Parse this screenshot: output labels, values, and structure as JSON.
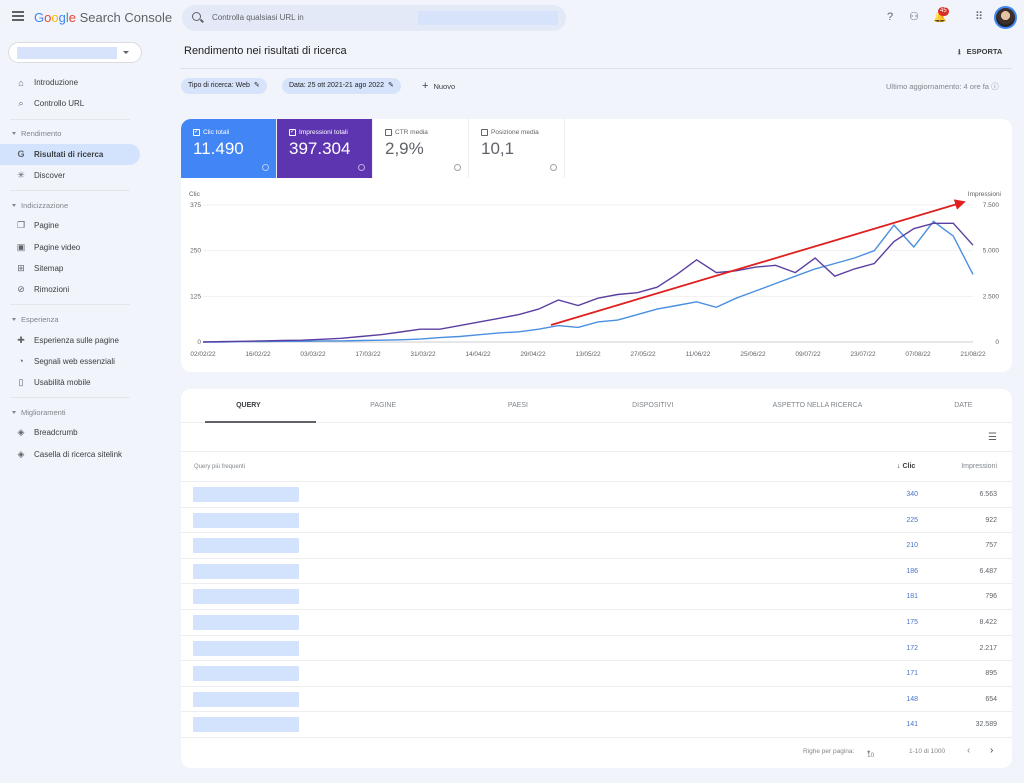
{
  "app": {
    "logo_parts": [
      "G",
      "o",
      "o",
      "g",
      "l",
      "e"
    ],
    "logo_rest": " Search Console"
  },
  "search": {
    "placeholder": "Controlla qualsiasi URL in"
  },
  "header": {
    "notification_count": "45"
  },
  "sidebar": {
    "items": [
      {
        "type": "item",
        "label": "Introduzione",
        "icon": "⌂",
        "name": "home-icon"
      },
      {
        "type": "item",
        "label": "Controllo URL",
        "icon": "⌕",
        "name": "search-icon"
      },
      {
        "type": "divider"
      },
      {
        "type": "section",
        "label": "Rendimento"
      },
      {
        "type": "item",
        "label": "Risultati di ricerca",
        "icon": "G",
        "name": "google-icon",
        "active": true
      },
      {
        "type": "item",
        "label": "Discover",
        "icon": "✳",
        "name": "discover-icon"
      },
      {
        "type": "divider"
      },
      {
        "type": "section",
        "label": "Indicizzazione"
      },
      {
        "type": "item",
        "label": "Pagine",
        "icon": "❐",
        "name": "pages-icon"
      },
      {
        "type": "item",
        "label": "Pagine video",
        "icon": "▣",
        "name": "video-pages-icon"
      },
      {
        "type": "item",
        "label": "Sitemap",
        "icon": "⊞",
        "name": "sitemap-icon"
      },
      {
        "type": "item",
        "label": "Rimozioni",
        "icon": "⊘",
        "name": "removals-icon"
      },
      {
        "type": "divider"
      },
      {
        "type": "section",
        "label": "Esperienza"
      },
      {
        "type": "item",
        "label": "Esperienza sulle pagine",
        "icon": "✚",
        "name": "page-experience-icon"
      },
      {
        "type": "item",
        "label": "Segnali web essenziali",
        "icon": "◔",
        "name": "core-web-vitals-icon"
      },
      {
        "type": "item",
        "label": "Usabilità mobile",
        "icon": "▯",
        "name": "mobile-icon"
      },
      {
        "type": "divider"
      },
      {
        "type": "section",
        "label": "Miglioramenti"
      },
      {
        "type": "item",
        "label": "Breadcrumb",
        "icon": "◈",
        "name": "breadcrumb-icon"
      },
      {
        "type": "item",
        "label": "Casella di ricerca sitelink",
        "icon": "◈",
        "name": "sitelink-icon"
      }
    ]
  },
  "page": {
    "title": "Rendimento nei risultati di ricerca",
    "export_label": "ESPORTA",
    "filters": [
      "Tipo di ricerca: Web",
      "Data: 25 ott 2021-21 ago 2022"
    ],
    "new_label": "Nuovo",
    "last_update": "Ultimo aggiornamento: 4 ore fa"
  },
  "metrics": [
    {
      "label": "Clic totali",
      "value": "11.490",
      "checked": true
    },
    {
      "label": "Impressioni totali",
      "value": "397.304",
      "checked": true
    },
    {
      "label": "CTR media",
      "value": "2,9%",
      "checked": false
    },
    {
      "label": "Posizione media",
      "value": "10,1",
      "checked": false
    }
  ],
  "chart_data": {
    "type": "line",
    "left_axis_label": "Clic",
    "right_axis_label": "Impressioni",
    "left_ticks": [
      "0",
      "125",
      "250",
      "375"
    ],
    "right_ticks": [
      "0",
      "2.500",
      "5.000",
      "7.500"
    ],
    "ylim_left": [
      0,
      375
    ],
    "ylim_right": [
      0,
      7500
    ],
    "x_ticks": [
      "02/02/22",
      "16/02/22",
      "03/03/22",
      "17/03/22",
      "31/03/22",
      "14/04/22",
      "29/04/22",
      "13/05/22",
      "27/05/22",
      "11/06/22",
      "25/06/22",
      "09/07/22",
      "23/07/22",
      "07/08/22",
      "21/08/22"
    ],
    "series": [
      {
        "name": "Clic",
        "color": "#4a8fe0",
        "values": [
          0,
          0,
          1,
          1,
          2,
          2,
          3,
          3,
          4,
          5,
          6,
          8,
          12,
          15,
          20,
          25,
          28,
          35,
          45,
          40,
          55,
          60,
          75,
          90,
          100,
          110,
          95,
          120,
          140,
          160,
          180,
          200,
          215,
          230,
          250,
          320,
          260,
          330,
          290,
          185
        ]
      },
      {
        "name": "Impressioni",
        "color": "#5b3fa0",
        "values": [
          0,
          20,
          40,
          60,
          80,
          100,
          150,
          200,
          300,
          400,
          550,
          700,
          700,
          900,
          1100,
          1300,
          1500,
          1800,
          2300,
          2000,
          2400,
          2600,
          2700,
          3000,
          3700,
          4500,
          3800,
          3900,
          4100,
          4200,
          3800,
          4600,
          3600,
          4000,
          4300,
          5500,
          6200,
          6500,
          6500,
          5300
        ]
      }
    ],
    "annotation": "red trend arrow"
  },
  "table": {
    "tabs": [
      "QUERY",
      "PAGINE",
      "PAESI",
      "DISPOSITIVI",
      "ASPETTO NELLA RICERCA",
      "DATE"
    ],
    "query_header": "Query più frequenti",
    "clicks_header": "Clic",
    "impressions_header": "Impressioni",
    "rows": [
      {
        "clicks": "340",
        "impressions": "6.563"
      },
      {
        "clicks": "225",
        "impressions": "922"
      },
      {
        "clicks": "210",
        "impressions": "757"
      },
      {
        "clicks": "186",
        "impressions": "6.487"
      },
      {
        "clicks": "181",
        "impressions": "796"
      },
      {
        "clicks": "175",
        "impressions": "8.422"
      },
      {
        "clicks": "172",
        "impressions": "2.217"
      },
      {
        "clicks": "171",
        "impressions": "895"
      },
      {
        "clicks": "148",
        "impressions": "654"
      },
      {
        "clicks": "141",
        "impressions": "32.589"
      }
    ],
    "pagination": {
      "rows_label": "Righe per pagina:",
      "rows_value": "10",
      "range": "1-10 di 1000"
    }
  }
}
